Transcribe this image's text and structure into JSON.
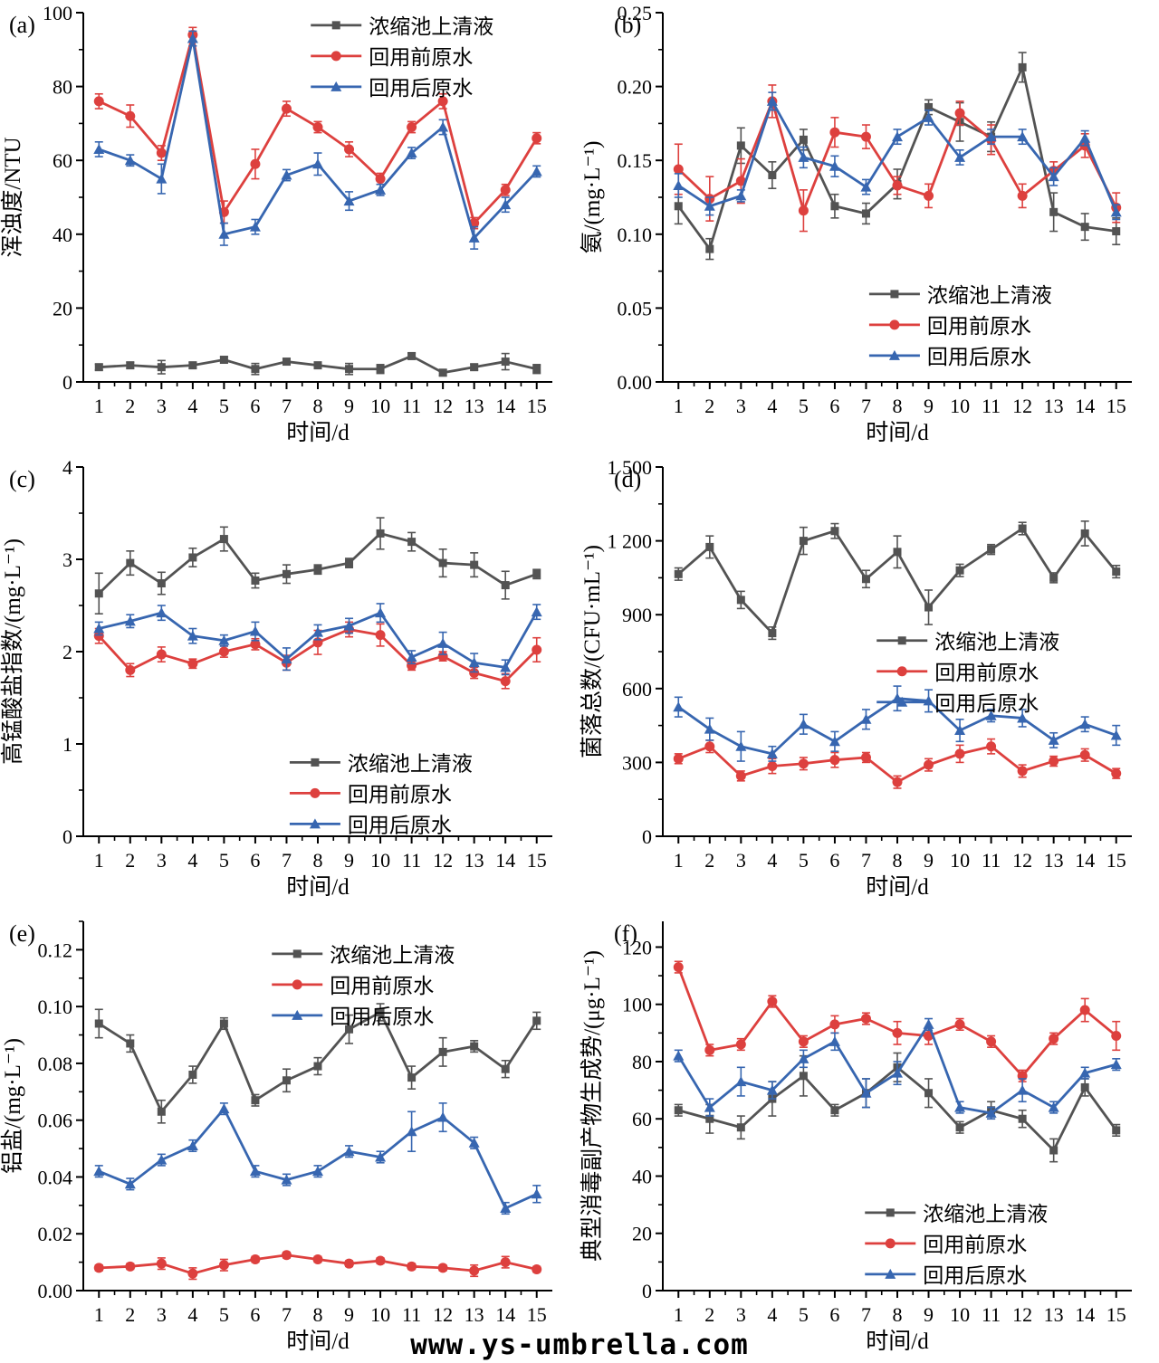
{
  "watermark": "www.ys-umbrella.com",
  "series_meta": [
    {
      "key": "supernatant",
      "label": "浓缩池上清液",
      "color": "#535353",
      "marker": "square"
    },
    {
      "key": "before-reuse",
      "label": "回用前原水",
      "color": "#dd403e",
      "marker": "circle"
    },
    {
      "key": "after-reuse",
      "label": "回用后原水",
      "color": "#3766b0",
      "marker": "triangle"
    }
  ],
  "chart_data": [
    {
      "panel": "(a)",
      "type": "line",
      "ylabel": "浑浊度/NTU",
      "xlabel": "时间/d",
      "ylim": [
        0,
        100
      ],
      "yticks": [
        0,
        20,
        40,
        60,
        80,
        100
      ],
      "ytick_labels": [
        "0",
        "20",
        "40",
        "60",
        "80",
        "100"
      ],
      "x": [
        1,
        2,
        3,
        4,
        5,
        6,
        7,
        8,
        9,
        10,
        11,
        12,
        13,
        14,
        15
      ],
      "legend": {
        "fx": 0.485,
        "fy": 0.034
      },
      "series": [
        {
          "name": "浓缩池上清液",
          "values": [
            4,
            4.5,
            4,
            4.5,
            6,
            3.5,
            5.5,
            4.5,
            3.5,
            3.5,
            7,
            2.5,
            4,
            5.5,
            3.5
          ],
          "errors": [
            0.8,
            0.8,
            1.8,
            0.8,
            0.8,
            1.5,
            0.8,
            0.8,
            1.5,
            1.2,
            0.8,
            0.8,
            0.8,
            2.2,
            1.2
          ]
        },
        {
          "name": "回用前原水",
          "values": [
            76,
            72,
            62,
            94,
            46,
            59,
            74,
            69,
            63,
            55,
            69,
            76,
            43,
            52,
            66
          ],
          "errors": [
            2,
            3,
            2,
            2,
            3,
            4,
            2,
            1.5,
            2,
            1.5,
            1.5,
            2,
            1.5,
            1.5,
            1.5
          ]
        },
        {
          "name": "回用后原水",
          "values": [
            63,
            60,
            55,
            93,
            40,
            42,
            56,
            59,
            49,
            52,
            62,
            69,
            39,
            48,
            57
          ],
          "errors": [
            2,
            1.5,
            4,
            2,
            3,
            2,
            1.5,
            3,
            2.5,
            1.5,
            1.5,
            2,
            3,
            2,
            1.5
          ]
        }
      ]
    },
    {
      "panel": "(b)",
      "type": "line",
      "ylabel": "氨/(mg·L⁻¹)",
      "xlabel": "时间/d",
      "ylim": [
        0,
        0.25
      ],
      "yticks": [
        0,
        0.05,
        0.1,
        0.15,
        0.2,
        0.25
      ],
      "ytick_labels": [
        "0.00",
        "0.05",
        "0.10",
        "0.15",
        "0.20",
        "0.25"
      ],
      "x": [
        1,
        2,
        3,
        4,
        5,
        6,
        7,
        8,
        9,
        10,
        11,
        12,
        13,
        14,
        15
      ],
      "legend": {
        "fx": 0.44,
        "fy": 0.762
      },
      "series": [
        {
          "name": "浓缩池上清液",
          "values": [
            0.119,
            0.09,
            0.16,
            0.14,
            0.164,
            0.119,
            0.114,
            0.134,
            0.186,
            0.176,
            0.166,
            0.213,
            0.115,
            0.105,
            0.102
          ],
          "errors": [
            0.012,
            0.007,
            0.012,
            0.009,
            0.007,
            0.008,
            0.007,
            0.01,
            0.005,
            0.013,
            0.01,
            0.01,
            0.013,
            0.009,
            0.009
          ]
        },
        {
          "name": "回用前原水",
          "values": [
            0.144,
            0.124,
            0.136,
            0.19,
            0.116,
            0.169,
            0.166,
            0.133,
            0.126,
            0.182,
            0.164,
            0.126,
            0.143,
            0.16,
            0.118
          ],
          "errors": [
            0.017,
            0.015,
            0.015,
            0.011,
            0.014,
            0.01,
            0.008,
            0.006,
            0.008,
            0.008,
            0.01,
            0.008,
            0.006,
            0.008,
            0.01
          ]
        },
        {
          "name": "回用后原水",
          "values": [
            0.133,
            0.119,
            0.126,
            0.19,
            0.152,
            0.146,
            0.132,
            0.166,
            0.179,
            0.152,
            0.166,
            0.166,
            0.139,
            0.165,
            0.115
          ],
          "errors": [
            0.008,
            0.006,
            0.004,
            0.006,
            0.007,
            0.007,
            0.005,
            0.005,
            0.005,
            0.005,
            0.005,
            0.005,
            0.006,
            0.005,
            0.005
          ]
        }
      ]
    },
    {
      "panel": "(c)",
      "type": "line",
      "ylabel": "高锰酸盐指数/(mg·L⁻¹)",
      "xlabel": "时间/d",
      "ylim": [
        0,
        4
      ],
      "yticks": [
        0,
        1,
        2,
        3,
        4
      ],
      "ytick_labels": [
        "0",
        "1",
        "2",
        "3",
        "4"
      ],
      "x": [
        1,
        2,
        3,
        4,
        5,
        6,
        7,
        8,
        9,
        10,
        11,
        12,
        13,
        14,
        15
      ],
      "legend": {
        "fx": 0.44,
        "fy": 0.8
      },
      "series": [
        {
          "name": "浓缩池上清液",
          "values": [
            2.63,
            2.96,
            2.74,
            3.02,
            3.22,
            2.77,
            2.84,
            2.89,
            2.96,
            3.28,
            3.19,
            2.96,
            2.94,
            2.72,
            2.84
          ],
          "errors": [
            0.22,
            0.13,
            0.12,
            0.1,
            0.13,
            0.08,
            0.1,
            0.05,
            0.05,
            0.17,
            0.1,
            0.15,
            0.13,
            0.15,
            0.05
          ]
        },
        {
          "name": "回用前原水",
          "values": [
            2.17,
            1.8,
            1.97,
            1.87,
            2.0,
            2.08,
            1.88,
            2.1,
            2.24,
            2.18,
            1.85,
            1.95,
            1.77,
            1.68,
            2.02
          ],
          "errors": [
            0.08,
            0.07,
            0.08,
            0.05,
            0.06,
            0.06,
            0.08,
            0.13,
            0.08,
            0.12,
            0.05,
            0.05,
            0.06,
            0.08,
            0.13
          ]
        },
        {
          "name": "回用后原水",
          "values": [
            2.25,
            2.33,
            2.42,
            2.17,
            2.12,
            2.22,
            1.92,
            2.21,
            2.28,
            2.42,
            1.94,
            2.09,
            1.88,
            1.83,
            2.43
          ],
          "errors": [
            0.07,
            0.07,
            0.08,
            0.08,
            0.06,
            0.1,
            0.12,
            0.08,
            0.08,
            0.1,
            0.07,
            0.12,
            0.1,
            0.08,
            0.08
          ]
        }
      ]
    },
    {
      "panel": "(d)",
      "type": "line",
      "ylabel": "菌落总数/(CFU·mL⁻¹)",
      "xlabel": "时间/d",
      "ylim": [
        0,
        1500
      ],
      "yticks": [
        0,
        300,
        600,
        900,
        1200,
        1500
      ],
      "ytick_labels": [
        "0",
        "300",
        "600",
        "900",
        "1 200",
        "1 500"
      ],
      "x": [
        1,
        2,
        3,
        4,
        5,
        6,
        7,
        8,
        9,
        10,
        11,
        12,
        13,
        14,
        15
      ],
      "legend": {
        "fx": 0.456,
        "fy": 0.47
      },
      "series": [
        {
          "name": "浓缩池上清液",
          "values": [
            1065,
            1175,
            960,
            825,
            1200,
            1240,
            1045,
            1155,
            930,
            1080,
            1165,
            1250,
            1050,
            1230,
            1075
          ],
          "errors": [
            25,
            45,
            35,
            25,
            55,
            30,
            35,
            65,
            70,
            25,
            20,
            25,
            20,
            50,
            25
          ]
        },
        {
          "name": "回用前原水",
          "values": [
            315,
            365,
            245,
            285,
            295,
            310,
            320,
            220,
            290,
            335,
            365,
            265,
            305,
            330,
            255
          ],
          "errors": [
            20,
            25,
            20,
            30,
            25,
            30,
            20,
            25,
            25,
            35,
            30,
            25,
            20,
            25,
            20
          ]
        },
        {
          "name": "回用后原水",
          "values": [
            525,
            435,
            365,
            335,
            455,
            385,
            475,
            560,
            550,
            430,
            490,
            480,
            390,
            455,
            410
          ],
          "errors": [
            40,
            45,
            60,
            30,
            40,
            40,
            40,
            50,
            45,
            45,
            25,
            35,
            30,
            30,
            40
          ]
        }
      ]
    },
    {
      "panel": "(e)",
      "type": "line",
      "ylabel": "铝盐/(mg·L⁻¹)",
      "xlabel": "时间/d",
      "ylim": [
        0,
        0.13
      ],
      "yticks": [
        0,
        0.02,
        0.04,
        0.06,
        0.08,
        0.1,
        0.12
      ],
      "ytick_labels": [
        "0.00",
        "0.02",
        "0.04",
        "0.06",
        "0.08",
        "0.10",
        "0.12"
      ],
      "x": [
        1,
        2,
        3,
        4,
        5,
        6,
        7,
        8,
        9,
        10,
        11,
        12,
        13,
        14,
        15
      ],
      "legend": {
        "fx": 0.402,
        "fy": 0.088
      },
      "series": [
        {
          "name": "浓缩池上清液",
          "values": [
            0.094,
            0.087,
            0.063,
            0.076,
            0.094,
            0.067,
            0.074,
            0.079,
            0.092,
            0.098,
            0.075,
            0.084,
            0.086,
            0.078,
            0.095
          ],
          "errors": [
            0.005,
            0.003,
            0.004,
            0.003,
            0.002,
            0.002,
            0.004,
            0.003,
            0.005,
            0.003,
            0.004,
            0.005,
            0.002,
            0.003,
            0.003
          ]
        },
        {
          "name": "回用前原水",
          "values": [
            0.008,
            0.0085,
            0.0095,
            0.006,
            0.009,
            0.011,
            0.0125,
            0.011,
            0.0095,
            0.0105,
            0.0085,
            0.008,
            0.007,
            0.01,
            0.0075
          ],
          "errors": [
            0.001,
            0.001,
            0.002,
            0.002,
            0.002,
            0.001,
            0.001,
            0.001,
            0.001,
            0.001,
            0.001,
            0.001,
            0.002,
            0.002,
            0.001
          ]
        },
        {
          "name": "回用后原水",
          "values": [
            0.042,
            0.0375,
            0.046,
            0.051,
            0.064,
            0.042,
            0.039,
            0.042,
            0.049,
            0.047,
            0.056,
            0.061,
            0.052,
            0.029,
            0.034
          ],
          "errors": [
            0.002,
            0.002,
            0.002,
            0.002,
            0.002,
            0.002,
            0.002,
            0.002,
            0.002,
            0.002,
            0.007,
            0.005,
            0.002,
            0.002,
            0.003
          ]
        }
      ]
    },
    {
      "panel": "(f)",
      "type": "line",
      "ylabel": "典型消毒副产物生成势/(μg·L⁻¹)",
      "xlabel": "时间/d",
      "ylim": [
        0,
        129
      ],
      "yticks": [
        0,
        20,
        40,
        60,
        80,
        100,
        120
      ],
      "ytick_labels": [
        "0",
        "20",
        "40",
        "60",
        "80",
        "100",
        "120"
      ],
      "x": [
        1,
        2,
        3,
        4,
        5,
        6,
        7,
        8,
        9,
        10,
        11,
        12,
        13,
        14,
        15
      ],
      "legend": {
        "fx": 0.431,
        "fy": 0.789
      },
      "series": [
        {
          "name": "浓缩池上清液",
          "values": [
            63,
            60,
            57,
            67,
            75,
            63,
            69,
            78,
            69,
            57,
            63,
            60,
            49,
            71,
            56
          ],
          "errors": [
            2,
            5,
            4,
            6,
            7,
            2,
            5,
            5,
            5,
            2,
            3,
            3,
            4,
            3,
            2
          ]
        },
        {
          "name": "回用前原水",
          "values": [
            113,
            84,
            86,
            101,
            87,
            93,
            95,
            90,
            89,
            93,
            87,
            75,
            88,
            98,
            89
          ],
          "errors": [
            2,
            2,
            2,
            2,
            2,
            3,
            2,
            4,
            3,
            2,
            2,
            2,
            2,
            4,
            5
          ]
        },
        {
          "name": "回用后原水",
          "values": [
            82,
            64,
            73,
            70,
            81,
            87,
            69,
            76,
            93,
            64,
            62,
            70,
            64,
            76,
            79
          ],
          "errors": [
            2,
            3,
            5,
            3,
            3,
            3,
            5,
            4,
            2,
            2,
            2,
            4,
            2,
            2,
            2
          ]
        }
      ]
    }
  ]
}
